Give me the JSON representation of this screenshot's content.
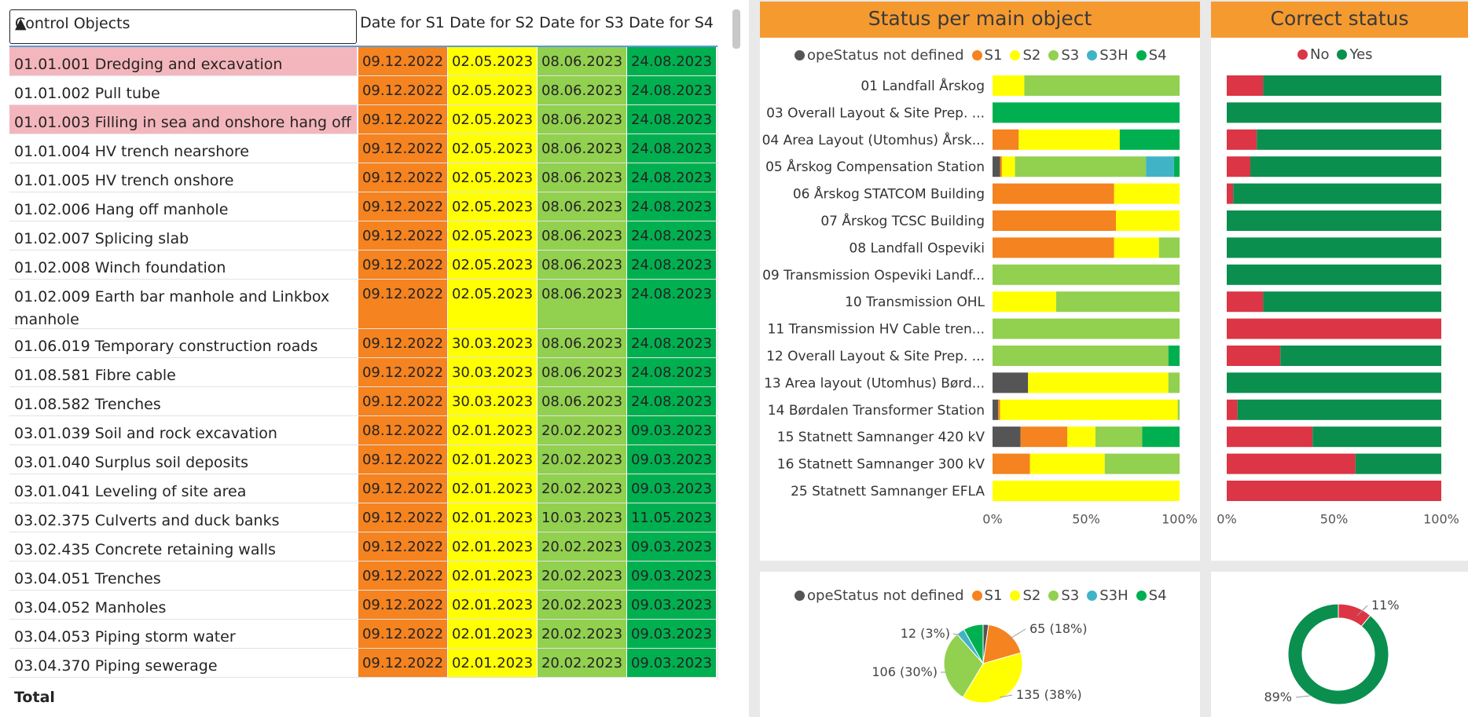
{
  "colors": {
    "not_defined": "#555555",
    "s1": "#f5831f",
    "s2": "#ffff00",
    "s3": "#92d050",
    "s3h": "#40b4c6",
    "s4": "#00b050",
    "no": "#dc3545",
    "yes": "#0a8f4f"
  },
  "table": {
    "header": {
      "control_objects": "Control Objects",
      "sort_indicator": "▲",
      "s1": "Date for S1",
      "s2": "Date for S2",
      "s3": "Date for S3",
      "s4": "Date for S4"
    },
    "rows": [
      {
        "name": "01.01.001 Dredging and excavation",
        "s1": "09.12.2022",
        "s2": "02.05.2023",
        "s3": "08.06.2023",
        "s4": "24.08.2023",
        "hl": true
      },
      {
        "name": "01.01.002 Pull tube",
        "s1": "09.12.2022",
        "s2": "02.05.2023",
        "s3": "08.06.2023",
        "s4": "24.08.2023",
        "hl": false
      },
      {
        "name": "01.01.003 Filling in sea and onshore hang off",
        "s1": "09.12.2022",
        "s2": "02.05.2023",
        "s3": "08.06.2023",
        "s4": "24.08.2023",
        "hl": true
      },
      {
        "name": "01.01.004 HV trench nearshore",
        "s1": "09.12.2022",
        "s2": "02.05.2023",
        "s3": "08.06.2023",
        "s4": "24.08.2023",
        "hl": false
      },
      {
        "name": "01.01.005 HV trench onshore",
        "s1": "09.12.2022",
        "s2": "02.05.2023",
        "s3": "08.06.2023",
        "s4": "24.08.2023",
        "hl": false
      },
      {
        "name": "01.02.006 Hang off manhole",
        "s1": "09.12.2022",
        "s2": "02.05.2023",
        "s3": "08.06.2023",
        "s4": "24.08.2023",
        "hl": false
      },
      {
        "name": "01.02.007 Splicing slab",
        "s1": "09.12.2022",
        "s2": "02.05.2023",
        "s3": "08.06.2023",
        "s4": "24.08.2023",
        "hl": false
      },
      {
        "name": "01.02.008 Winch foundation",
        "s1": "09.12.2022",
        "s2": "02.05.2023",
        "s3": "08.06.2023",
        "s4": "24.08.2023",
        "hl": false
      },
      {
        "name": "01.02.009 Earth bar manhole and Linkbox manhole",
        "s1": "09.12.2022",
        "s2": "02.05.2023",
        "s3": "08.06.2023",
        "s4": "24.08.2023",
        "hl": false,
        "tall": true
      },
      {
        "name": "01.06.019 Temporary construction roads",
        "s1": "09.12.2022",
        "s2": "30.03.2023",
        "s3": "08.06.2023",
        "s4": "24.08.2023",
        "hl": false
      },
      {
        "name": "01.08.581 Fibre cable",
        "s1": "09.12.2022",
        "s2": "30.03.2023",
        "s3": "08.06.2023",
        "s4": "24.08.2023",
        "hl": false
      },
      {
        "name": "01.08.582 Trenches",
        "s1": "09.12.2022",
        "s2": "30.03.2023",
        "s3": "08.06.2023",
        "s4": "24.08.2023",
        "hl": false
      },
      {
        "name": "03.01.039 Soil and rock excavation",
        "s1": "08.12.2022",
        "s2": "02.01.2023",
        "s3": "20.02.2023",
        "s4": "09.03.2023",
        "hl": false
      },
      {
        "name": "03.01.040 Surplus soil deposits",
        "s1": "09.12.2022",
        "s2": "02.01.2023",
        "s3": "20.02.2023",
        "s4": "09.03.2023",
        "hl": false
      },
      {
        "name": "03.01.041 Leveling of site area",
        "s1": "09.12.2022",
        "s2": "02.01.2023",
        "s3": "20.02.2023",
        "s4": "09.03.2023",
        "hl": false
      },
      {
        "name": "03.02.375 Culverts and duck banks",
        "s1": "09.12.2022",
        "s2": "02.01.2023",
        "s3": "10.03.2023",
        "s4": "11.05.2023",
        "hl": false
      },
      {
        "name": "03.02.435 Concrete retaining walls",
        "s1": "09.12.2022",
        "s2": "02.01.2023",
        "s3": "20.02.2023",
        "s4": "09.03.2023",
        "hl": false
      },
      {
        "name": "03.04.051 Trenches",
        "s1": "09.12.2022",
        "s2": "02.01.2023",
        "s3": "20.02.2023",
        "s4": "09.03.2023",
        "hl": false
      },
      {
        "name": "03.04.052 Manholes",
        "s1": "09.12.2022",
        "s2": "02.01.2023",
        "s3": "20.02.2023",
        "s4": "09.03.2023",
        "hl": false
      },
      {
        "name": "03.04.053 Piping storm water",
        "s1": "09.12.2022",
        "s2": "02.01.2023",
        "s3": "20.02.2023",
        "s4": "09.03.2023",
        "hl": false
      },
      {
        "name": "03.04.370 Piping sewerage",
        "s1": "09.12.2022",
        "s2": "02.01.2023",
        "s3": "20.02.2023",
        "s4": "09.03.2023",
        "hl": false
      }
    ],
    "total_label": "Total"
  },
  "status_panel": {
    "title": "Status per main object"
  },
  "correct_panel": {
    "title": "Correct status"
  },
  "legend_status": [
    "opeStatus not defined",
    "S1",
    "S2",
    "S3",
    "S3H",
    "S4"
  ],
  "legend_correct": [
    "No",
    "Yes"
  ],
  "chart_data": [
    {
      "type": "bar",
      "orientation": "horizontal",
      "stacked": "percent",
      "title": "Status per main object",
      "categories": [
        "01 Landfall Årskog",
        "03 Overall Layout & Site Prep. ...",
        "04 Area Layout (Utomhus) Årsk...",
        "05 Årskog Compensation Station",
        "06 Årskog STATCOM Building",
        "07 Årskog TCSC Building",
        "08 Landfall Ospeviki",
        "09 Transmission Ospeviki Landf...",
        "10 Transmission OHL",
        "11 Transmission HV Cable tren...",
        "12 Overall Layout & Site Prep. ...",
        "13 Area layout (Utomhus) Børd...",
        "14 Børdalen Transformer Station",
        "15 Statnett Samnanger 420 kV",
        "16 Statnett Samnanger 300 kV",
        "25 Statnett Samnanger EFLA"
      ],
      "series": [
        {
          "name": "opeStatus not defined",
          "values": [
            0,
            0,
            0,
            4,
            0,
            0,
            0,
            0,
            0,
            0,
            0,
            19,
            3,
            15,
            0,
            0
          ]
        },
        {
          "name": "S1",
          "values": [
            0,
            0,
            14,
            1,
            65,
            66,
            65,
            0,
            0,
            0,
            0,
            0,
            1,
            25,
            20,
            0
          ]
        },
        {
          "name": "S2",
          "values": [
            17,
            0,
            54,
            7,
            35,
            34,
            24,
            0,
            34,
            0,
            0,
            75,
            95,
            15,
            40,
            100
          ]
        },
        {
          "name": "S3",
          "values": [
            83,
            0,
            0,
            70,
            0,
            0,
            11,
            100,
            66,
            100,
            94,
            6,
            1,
            25,
            40,
            0
          ]
        },
        {
          "name": "S3H",
          "values": [
            0,
            0,
            0,
            15,
            0,
            0,
            0,
            0,
            0,
            0,
            0,
            0,
            0,
            0,
            0,
            0
          ]
        },
        {
          "name": "S4",
          "values": [
            0,
            100,
            32,
            3,
            0,
            0,
            0,
            0,
            0,
            0,
            6,
            0,
            0,
            20,
            0,
            0
          ]
        }
      ],
      "xticks": [
        "0%",
        "50%",
        "100%"
      ]
    },
    {
      "type": "bar",
      "orientation": "horizontal",
      "stacked": "percent",
      "title": "Correct status",
      "categories": [
        "01 Landfall Årskog",
        "03 Overall Layout & Site Prep. ...",
        "04 Area Layout (Utomhus) Årsk...",
        "05 Årskog Compensation Station",
        "06 Årskog STATCOM Building",
        "07 Årskog TCSC Building",
        "08 Landfall Ospeviki",
        "09 Transmission Ospeviki Landf...",
        "10 Transmission OHL",
        "11 Transmission HV Cable tren...",
        "12 Overall Layout & Site Prep. ...",
        "13 Area layout (Utomhus) Børd...",
        "14 Børdalen Transformer Station",
        "15 Statnett Samnanger 420 kV",
        "16 Statnett Samnanger 300 kV",
        "25 Statnett Samnanger EFLA"
      ],
      "series": [
        {
          "name": "No",
          "values": [
            17,
            0,
            14,
            11,
            3,
            0,
            0,
            0,
            17,
            100,
            25,
            0,
            5,
            40,
            60,
            100
          ]
        },
        {
          "name": "Yes",
          "values": [
            83,
            100,
            86,
            89,
            97,
            100,
            100,
            100,
            83,
            0,
            75,
            100,
            95,
            60,
            40,
            0
          ]
        }
      ],
      "xticks": [
        "0%",
        "50%",
        "100%"
      ]
    },
    {
      "type": "pie",
      "values": [
        {
          "name": "opeStatus not defined",
          "value": 8
        },
        {
          "name": "S1",
          "value": 65
        },
        {
          "name": "S2",
          "value": 135
        },
        {
          "name": "S3",
          "value": 106
        },
        {
          "name": "S3H",
          "value": 12
        },
        {
          "name": "S4",
          "value": 29
        }
      ],
      "labels": [
        "65 (18%)",
        "135 (38%)",
        "106 (30%)",
        "12 (3%)"
      ]
    },
    {
      "type": "pie",
      "donut": true,
      "values": [
        {
          "name": "No",
          "value": 11
        },
        {
          "name": "Yes",
          "value": 89
        }
      ],
      "labels": [
        "11%",
        "89%"
      ]
    }
  ]
}
